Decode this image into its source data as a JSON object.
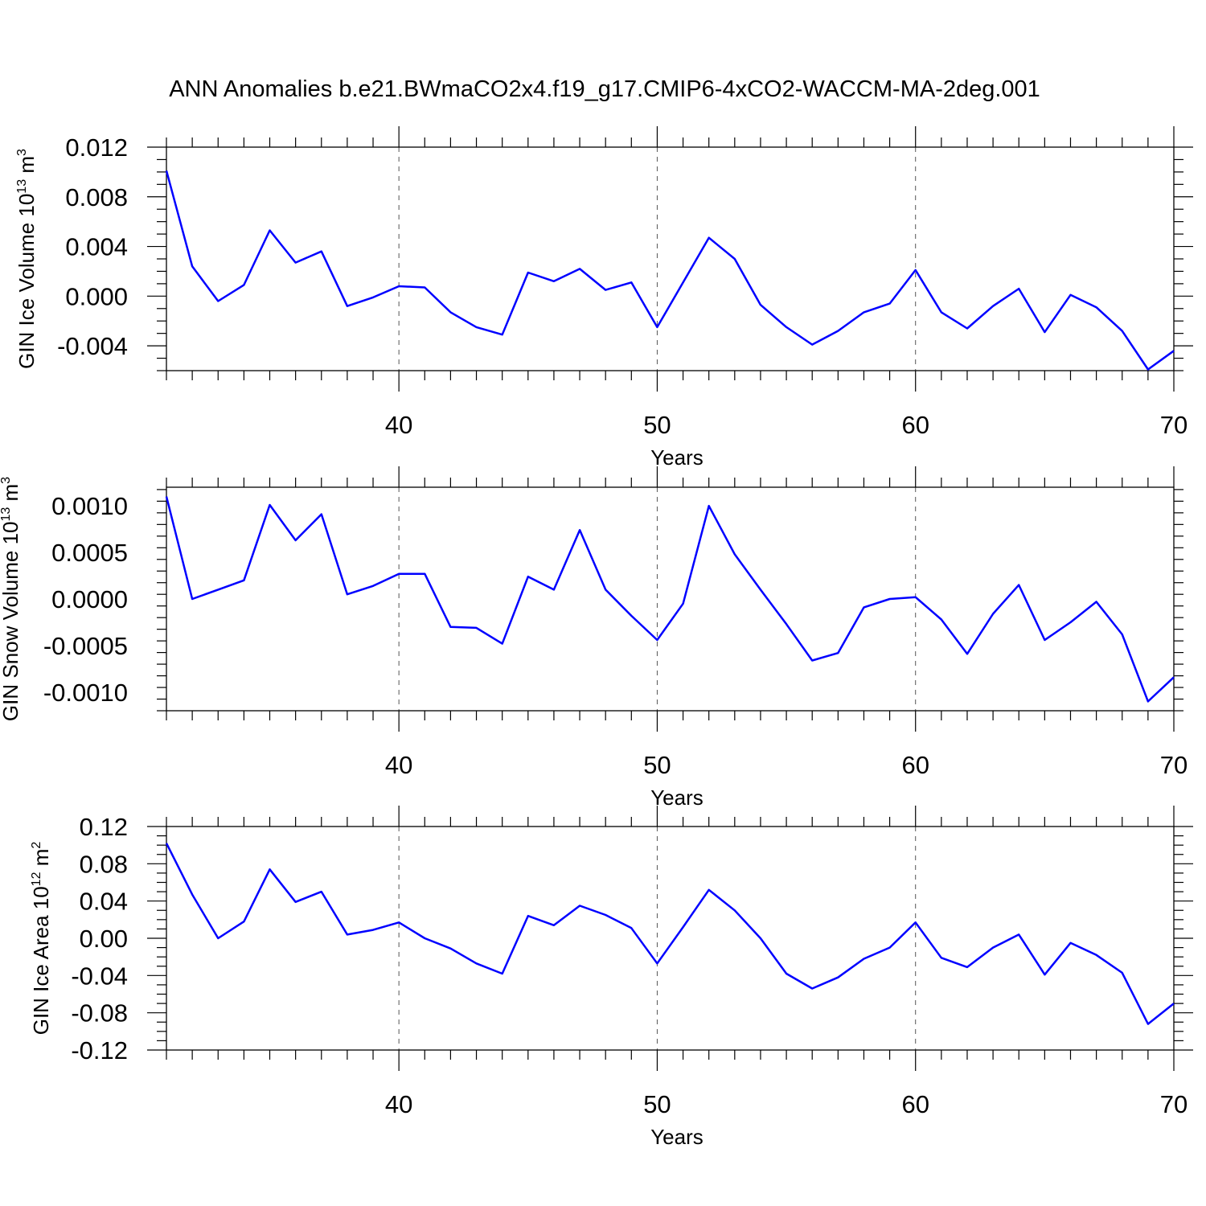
{
  "title": "ANN Anomalies b.e21.BWmaCO2x4.f19_g17.CMIP6-4xCO2-WACCM-MA-2deg.001",
  "line_color": "#0000ff",
  "chart_data": [
    {
      "type": "line",
      "ylabel": "GIN Ice Volume 10",
      "ylabel_exp": "13",
      "ylabel_unit": " m",
      "ylabel_unit_exp": "3",
      "xlabel": "Years",
      "xlim": [
        31,
        70
      ],
      "ylim": [
        -0.006,
        0.012
      ],
      "xticks": [
        40,
        50,
        60,
        70
      ],
      "xtick_labels": [
        "40",
        "50",
        "60",
        "70"
      ],
      "yticks": [
        -0.004,
        0.0,
        0.004,
        0.008,
        0.012
      ],
      "ytick_labels": [
        "-0.004",
        "0.000",
        "0.004",
        "0.008",
        "0.012"
      ],
      "grid_x": true,
      "x": [
        31,
        32,
        33,
        34,
        35,
        36,
        37,
        38,
        39,
        40,
        41,
        42,
        43,
        44,
        45,
        46,
        47,
        48,
        49,
        50,
        51,
        52,
        53,
        54,
        55,
        56,
        57,
        58,
        59,
        60,
        61,
        62,
        63,
        64,
        65,
        66,
        67,
        68,
        69,
        70
      ],
      "series": [
        {
          "values": [
            0.0101,
            0.0024,
            -0.0004,
            0.0009,
            0.0053,
            0.0027,
            0.0036,
            -0.0008,
            -0.0001,
            0.0008,
            0.0007,
            -0.0013,
            -0.0025,
            -0.0031,
            0.0019,
            0.0012,
            0.0022,
            0.0005,
            0.0011,
            -0.0025,
            0.0011,
            0.0047,
            0.003,
            -0.0007,
            -0.0025,
            -0.0039,
            -0.0028,
            -0.0013,
            -0.0006,
            0.0021,
            -0.0013,
            -0.0026,
            -0.0008,
            0.0006,
            -0.0029,
            0.0001,
            -0.0009,
            -0.0028,
            -0.0059,
            -0.0044
          ]
        }
      ]
    },
    {
      "type": "line",
      "ylabel": "GIN Snow Volume 10",
      "ylabel_exp": "13",
      "ylabel_unit": " m",
      "ylabel_unit_exp": "3",
      "xlabel": "Years",
      "xlim": [
        31,
        70
      ],
      "ylim": [
        -0.0012,
        0.0012
      ],
      "xticks": [
        40,
        50,
        60,
        70
      ],
      "xtick_labels": [
        "40",
        "50",
        "60",
        "70"
      ],
      "yticks": [
        -0.001,
        -0.0005,
        0.0,
        0.0005,
        0.001
      ],
      "ytick_labels": [
        "-0.0010",
        "-0.0005",
        "0.0000",
        "0.0005",
        "0.0010"
      ],
      "grid_x": true,
      "x": [
        31,
        32,
        33,
        34,
        35,
        36,
        37,
        38,
        39,
        40,
        41,
        42,
        43,
        44,
        45,
        46,
        47,
        48,
        49,
        50,
        51,
        52,
        53,
        54,
        55,
        56,
        57,
        58,
        59,
        60,
        61,
        62,
        63,
        64,
        65,
        66,
        67,
        68,
        69,
        70
      ],
      "series": [
        {
          "values": [
            0.0011,
            0.0,
            0.0001,
            0.0002,
            0.00101,
            0.00063,
            0.00091,
            5e-05,
            0.00014,
            0.00027,
            0.00027,
            -0.0003,
            -0.00031,
            -0.00048,
            0.00024,
            0.0001,
            0.00074,
            0.0001,
            -0.00018,
            -0.00044,
            -5e-05,
            0.001,
            0.00048,
            0.0001,
            -0.00027,
            -0.00066,
            -0.00058,
            -9e-05,
            0.0,
            2e-05,
            -0.00022,
            -0.00059,
            -0.00016,
            0.00015,
            -0.00044,
            -0.00025,
            -3e-05,
            -0.00038,
            -0.0011,
            -0.00084
          ]
        }
      ]
    },
    {
      "type": "line",
      "ylabel": "GIN Ice Area 10",
      "ylabel_exp": "12",
      "ylabel_unit": " m",
      "ylabel_unit_exp": "2",
      "xlabel": "Years",
      "xlim": [
        31,
        70
      ],
      "ylim": [
        -0.12,
        0.12
      ],
      "xticks": [
        40,
        50,
        60,
        70
      ],
      "xtick_labels": [
        "40",
        "50",
        "60",
        "70"
      ],
      "yticks": [
        -0.12,
        -0.08,
        -0.04,
        0.0,
        0.04,
        0.08,
        0.12
      ],
      "ytick_labels": [
        "-0.12",
        "-0.08",
        "-0.04",
        "0.00",
        "0.04",
        "0.08",
        "0.12"
      ],
      "grid_x": true,
      "x": [
        31,
        32,
        33,
        34,
        35,
        36,
        37,
        38,
        39,
        40,
        41,
        42,
        43,
        44,
        45,
        46,
        47,
        48,
        49,
        50,
        51,
        52,
        53,
        54,
        55,
        56,
        57,
        58,
        59,
        60,
        61,
        62,
        63,
        64,
        65,
        66,
        67,
        68,
        69,
        70
      ],
      "series": [
        {
          "values": [
            0.102,
            0.047,
            0.0,
            0.018,
            0.074,
            0.039,
            0.05,
            0.004,
            0.009,
            0.017,
            0.0,
            -0.011,
            -0.027,
            -0.038,
            0.024,
            0.014,
            0.035,
            0.025,
            0.011,
            -0.027,
            0.012,
            0.052,
            0.03,
            0.0,
            -0.038,
            -0.054,
            -0.042,
            -0.022,
            -0.01,
            0.017,
            -0.021,
            -0.031,
            -0.01,
            0.004,
            -0.039,
            -0.005,
            -0.018,
            -0.037,
            -0.092,
            -0.07
          ]
        }
      ]
    }
  ]
}
